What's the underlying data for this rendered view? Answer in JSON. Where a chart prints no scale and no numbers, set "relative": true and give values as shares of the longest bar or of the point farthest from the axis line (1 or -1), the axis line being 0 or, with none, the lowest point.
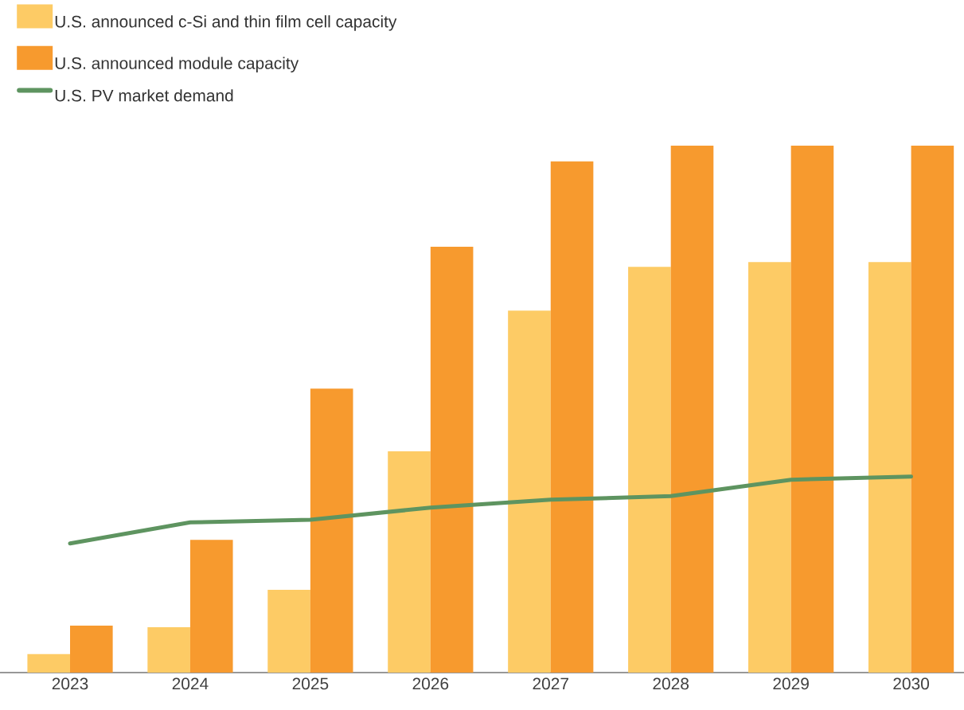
{
  "chart_data": {
    "type": "bar",
    "relative": true,
    "categories": [
      "2023",
      "2024",
      "2025",
      "2026",
      "2027",
      "2028",
      "2029",
      "2030"
    ],
    "legend": "top left",
    "marker": "none",
    "line_style": "solid",
    "series": [
      {
        "name": "U.S. announced c-Si and thin film cell capacity",
        "color": "#fdcb65",
        "values": [
          0.035,
          0.086,
          0.157,
          0.42,
          0.687,
          0.77,
          0.779,
          0.779
        ]
      },
      {
        "name": "U.S. announced module capacity",
        "color": "#f79a2e",
        "values": [
          0.089,
          0.252,
          0.539,
          0.808,
          0.97,
          1,
          1,
          1
        ]
      },
      {
        "name": "U.S. PV market demand",
        "type": "line",
        "color": "#5e9460",
        "values": [
          0.245,
          0.285,
          0.29,
          0.313,
          0.328,
          0.335,
          0.366,
          0.372
        ]
      }
    ]
  }
}
